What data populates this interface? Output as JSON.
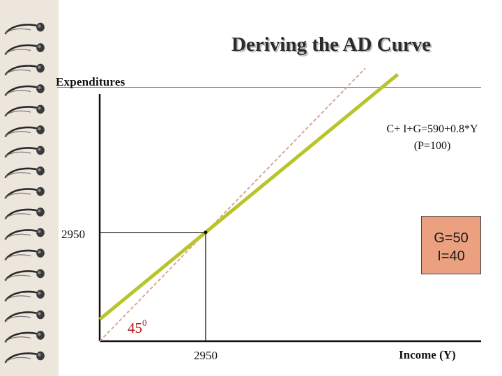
{
  "slide": {
    "title": "Deriving the AD Curve",
    "background": "#ffffff",
    "binding_color": "#ece6dc"
  },
  "chart_data": {
    "type": "line",
    "title": "Deriving the AD Curve",
    "xlabel": "Income (Y)",
    "ylabel": "Expenditures",
    "xlim": [
      0,
      10620
    ],
    "ylim": [
      0,
      6700
    ],
    "x_ticks": [
      "2950"
    ],
    "y_ticks": [
      "2950"
    ],
    "grid": false,
    "series": [
      {
        "name": "C+ I+G=590+0.8*Y",
        "sublabel": "(P=100)",
        "color": "#b8c52a",
        "style": "solid",
        "x": [
          0,
          8300
        ],
        "y": [
          590,
          7230
        ]
      },
      {
        "name": "45 degree line",
        "color": "#d9a894",
        "style": "dashed",
        "x": [
          0,
          7400
        ],
        "y": [
          0,
          7400
        ]
      }
    ],
    "equilibrium": {
      "x": 2950,
      "y": 2950
    },
    "angle_label": {
      "number": "45",
      "superscript": "0"
    }
  },
  "annotation_box": {
    "line1": "G=50",
    "line2": "I=40",
    "fill": "#eba07f"
  },
  "colors": {
    "ae_line": "#b8c52a",
    "diagonal": "#d9a894",
    "axis": "#111111",
    "angle_text": "#b01818"
  }
}
